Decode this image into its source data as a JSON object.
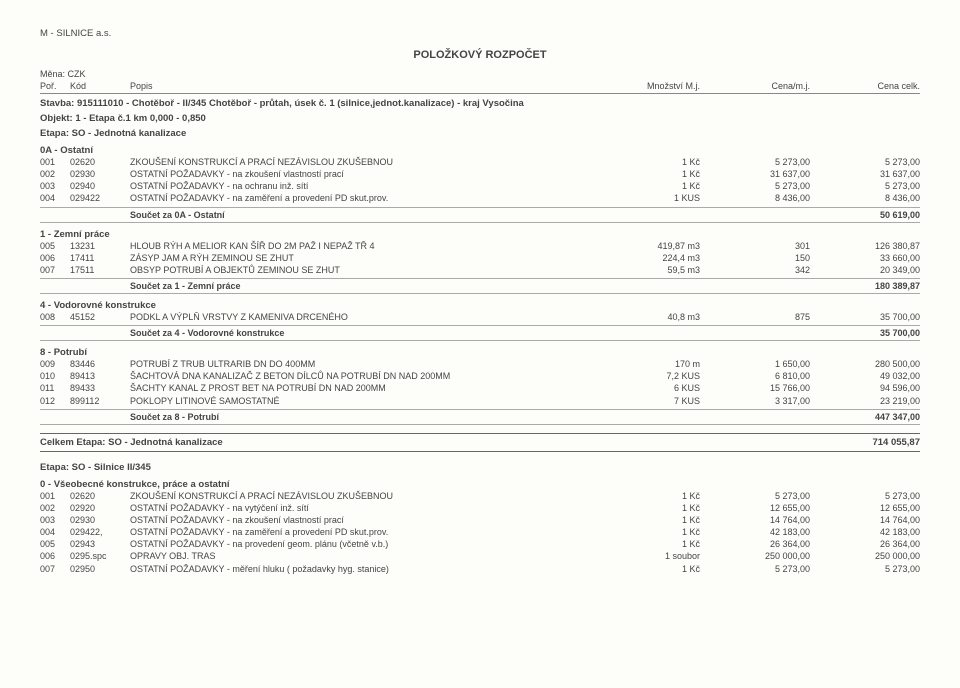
{
  "company": "M - SILNICE a.s.",
  "title": "POLOŽKOVÝ ROZPOČET",
  "currency_label": "Měna: CZK",
  "col": {
    "por": "Poř.",
    "kod": "Kód",
    "popis": "Popis",
    "mnoz": "Množství M.j.",
    "cenamj": "Cena/m.j.",
    "celk": "Cena celk."
  },
  "stavba": "Stavba: 915111010 - Chotěboř - II/345 Chotěboř - průtah, úsek č. 1 (silnice,jednot.kanalizace) - kraj Vysočina",
  "objekt": "Objekt: 1 - Etapa č.1 km 0,000 - 0,850",
  "etapa1": "Etapa: SO - Jednotná kanalizace",
  "groups1": [
    {
      "name": "0A - Ostatní",
      "rows": [
        {
          "por": "001",
          "kod": "02620",
          "popis": "ZKOUŠENÍ KONSTRUKCÍ A PRACÍ NEZÁVISLOU ZKUŠEBNOU",
          "mnoz": "1 Kč",
          "mj": "5 273,00",
          "celk": "5 273,00"
        },
        {
          "por": "002",
          "kod": "02930",
          "popis": "OSTATNÍ POŽADAVKY - na zkoušení vlastností prací",
          "mnoz": "1 Kč",
          "mj": "31 637,00",
          "celk": "31 637,00"
        },
        {
          "por": "003",
          "kod": "02940",
          "popis": "OSTATNÍ POŽADAVKY - na ochranu inž. sítí",
          "mnoz": "1 Kč",
          "mj": "5 273,00",
          "celk": "5 273,00"
        },
        {
          "por": "004",
          "kod": "029422",
          "popis": "OSTATNÍ POŽADAVKY - na zaměření a provedení PD skut.prov.",
          "mnoz": "1 KUS",
          "mj": "8 436,00",
          "celk": "8 436,00"
        }
      ],
      "subtotal_label": "Součet za        0A - Ostatní",
      "subtotal": "50 619,00"
    },
    {
      "name": "1 - Zemní práce",
      "rows": [
        {
          "por": "005",
          "kod": "13231",
          "popis": "HLOUB RÝH A MELIOR KAN ŠÍŘ DO 2M PAŽ I NEPAŽ TŘ 4",
          "mnoz": "419,87 m3",
          "mj": "301",
          "celk": "126 380,87"
        },
        {
          "por": "006",
          "kod": "17411",
          "popis": "ZÁSYP JAM A RÝH ZEMINOU SE ZHUT",
          "mnoz": "224,4 m3",
          "mj": "150",
          "celk": "33 660,00"
        },
        {
          "por": "007",
          "kod": "17511",
          "popis": "OBSYP POTRUBÍ A OBJEKTŮ ZEMINOU SE ZHUT",
          "mnoz": "59,5 m3",
          "mj": "342",
          "celk": "20 349,00"
        }
      ],
      "subtotal_label": "Součet za        1 - Zemní práce",
      "subtotal": "180 389,87"
    },
    {
      "name": "4 - Vodorovné konstrukce",
      "rows": [
        {
          "por": "008",
          "kod": "45152",
          "popis": "PODKL A VÝPLŇ VRSTVY Z KAMENIVA DRCENÉHO",
          "mnoz": "40,8 m3",
          "mj": "875",
          "celk": "35 700,00"
        }
      ],
      "subtotal_label": "Součet za        4 - Vodorovné konstrukce",
      "subtotal": "35 700,00"
    },
    {
      "name": "8 - Potrubí",
      "rows": [
        {
          "por": "009",
          "kod": "83446",
          "popis": "POTRUBÍ Z TRUB ULTRARIB DN DO 400MM",
          "mnoz": "170 m",
          "mj": "1 650,00",
          "celk": "280 500,00"
        },
        {
          "por": "010",
          "kod": "89413",
          "popis": "ŠACHTOVÁ DNA KANALIZAČ Z BETON DÍLCŮ NA POTRUBÍ DN NAD 200MM",
          "mnoz": "7,2 KUS",
          "mj": "6 810,00",
          "celk": "49 032,00"
        },
        {
          "por": "011",
          "kod": "89433",
          "popis": "ŠACHTY KANAL Z PROST BET NA POTRUBÍ DN NAD 200MM",
          "mnoz": "6 KUS",
          "mj": "15 766,00",
          "celk": "94 596,00"
        },
        {
          "por": "012",
          "kod": "899112",
          "popis": "POKLOPY LITINOVÉ SAMOSTATNÉ",
          "mnoz": "7 KUS",
          "mj": "3 317,00",
          "celk": "23 219,00"
        }
      ],
      "subtotal_label": "Součet za        8 - Potrubí",
      "subtotal": "447 347,00"
    }
  ],
  "total1_label": "Celkem          Etapa: SO - Jednotná kanalizace",
  "total1": "714 055,87",
  "etapa2": "Etapa: SO - Silnice II/345",
  "group2_name": "0 - Všeobecné konstrukce, práce a ostatní",
  "rows2": [
    {
      "por": "001",
      "kod": "02620",
      "popis": "ZKOUŠENÍ KONSTRUKCÍ A PRACÍ NEZÁVISLOU ZKUŠEBNOU",
      "mnoz": "1 Kč",
      "mj": "5 273,00",
      "celk": "5 273,00"
    },
    {
      "por": "002",
      "kod": "02920",
      "popis": "OSTATNÍ POŽADAVKY - na vytýčení inž. sítí",
      "mnoz": "1 Kč",
      "mj": "12 655,00",
      "celk": "12 655,00"
    },
    {
      "por": "003",
      "kod": "02930",
      "popis": "OSTATNÍ POŽADAVKY - na zkoušení vlastností prací",
      "mnoz": "1 Kč",
      "mj": "14 764,00",
      "celk": "14 764,00"
    },
    {
      "por": "004",
      "kod": "029422,",
      "popis": "OSTATNÍ POŽADAVKY - na zaměření a provedení PD skut.prov.",
      "mnoz": "1 Kč",
      "mj": "42 183,00",
      "celk": "42 183,00"
    },
    {
      "por": "005",
      "kod": "02943",
      "popis": "OSTATNÍ POŽADAVKY - na provedení geom. plánu (včetně v.b.)",
      "mnoz": "1 Kč",
      "mj": "26 364,00",
      "celk": "26 364,00"
    },
    {
      "por": "006",
      "kod": "0295.spc",
      "popis": "OPRAVY OBJ. TRAS",
      "mnoz": "1 soubor",
      "mj": "250 000,00",
      "celk": "250 000,00"
    },
    {
      "por": "007",
      "kod": "02950",
      "popis": "OSTATNÍ POŽADAVKY - měření hluku ( požadavky hyg. stanice)",
      "mnoz": "1 Kč",
      "mj": "5 273,00",
      "celk": "5 273,00"
    }
  ]
}
